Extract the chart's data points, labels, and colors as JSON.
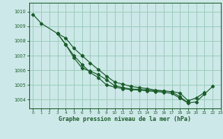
{
  "title": "Graphe pression niveau de la mer (hPa)",
  "bg_color": "#cde8e8",
  "grid_color": "#98ccb8",
  "line_color": "#1a5c2a",
  "spine_color": "#1a5c2a",
  "xlim": [
    -0.5,
    23
  ],
  "ylim": [
    1003.4,
    1010.6
  ],
  "yticks": [
    1004,
    1005,
    1006,
    1007,
    1008,
    1009,
    1010
  ],
  "xticks": [
    0,
    1,
    2,
    3,
    4,
    5,
    6,
    7,
    8,
    9,
    10,
    11,
    12,
    13,
    14,
    15,
    16,
    17,
    18,
    19,
    20,
    21,
    22,
    23
  ],
  "lines": [
    {
      "x": [
        0,
        1,
        3,
        4,
        5,
        6,
        7,
        8,
        9,
        10,
        11,
        12,
        13,
        14,
        15,
        16,
        17,
        18,
        19,
        20,
        21
      ],
      "y": [
        1009.8,
        1009.2,
        1008.5,
        1007.75,
        1006.85,
        1006.15,
        1005.95,
        1005.7,
        1005.35,
        1004.95,
        1004.82,
        1004.72,
        1004.7,
        1004.65,
        1004.6,
        1004.58,
        1004.55,
        1004.45,
        1003.92,
        1004.12,
        1004.48
      ]
    },
    {
      "x": [
        3,
        4,
        5,
        6
      ],
      "y": [
        1008.5,
        1008.2,
        1007.5,
        1007.0
      ]
    },
    {
      "x": [
        3,
        4,
        5,
        6,
        7,
        8,
        9,
        10,
        11,
        12,
        13,
        14,
        15,
        16,
        17,
        18,
        19,
        20,
        21,
        22
      ],
      "y": [
        1008.5,
        1007.75,
        1007.0,
        1006.4,
        1005.85,
        1005.5,
        1005.0,
        1004.85,
        1004.75,
        1004.68,
        1004.65,
        1004.6,
        1004.55,
        1004.5,
        1004.42,
        1004.1,
        1003.77,
        1003.85,
        1004.38,
        1004.9
      ]
    },
    {
      "x": [
        6,
        7,
        8,
        9,
        10,
        11,
        12,
        13,
        14,
        15,
        16,
        17,
        18,
        19
      ],
      "y": [
        1007.0,
        1006.5,
        1006.05,
        1005.6,
        1005.2,
        1005.05,
        1004.9,
        1004.82,
        1004.75,
        1004.65,
        1004.6,
        1004.52,
        1004.2,
        1003.77
      ]
    }
  ]
}
